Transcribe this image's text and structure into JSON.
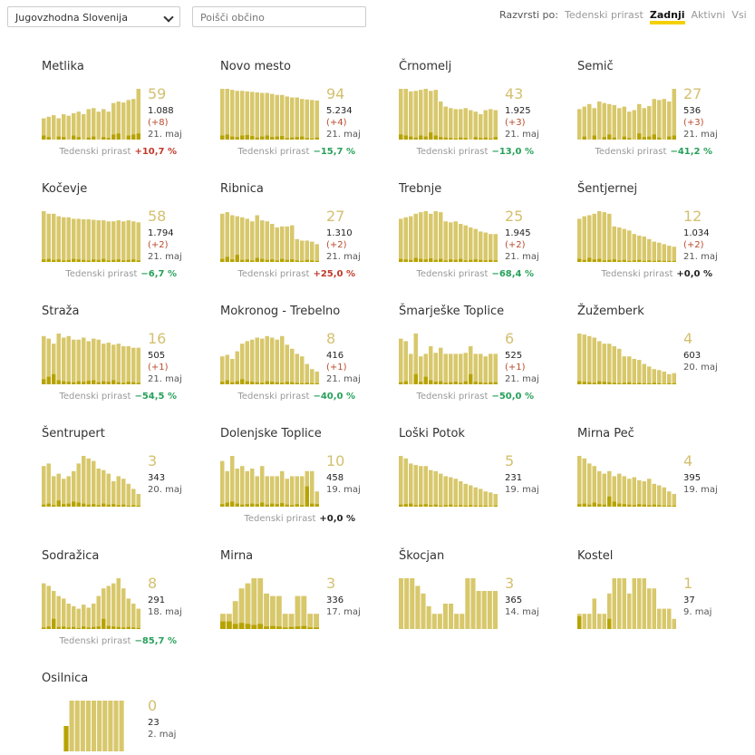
{
  "header": {
    "region": "Jugovzhodna Slovenija",
    "search_placeholder": "Poišči občino",
    "sort_label": "Razvrsti po:",
    "sort_options": [
      "Tedenski prirast",
      "Zadnji",
      "Aktivni",
      "Vsi"
    ],
    "active_sort": 1
  },
  "growth_label": "Tedenski prirast",
  "items": [
    {
      "name": "Metlika",
      "last": "59",
      "total": "1.088",
      "delta": "(+8)",
      "date": "21. maj",
      "growth": "+10,7 %",
      "bars": [
        42,
        45,
        48,
        42,
        50,
        47,
        52,
        55,
        50,
        60,
        62,
        55,
        60,
        55,
        72,
        75,
        73,
        78,
        80,
        100
      ],
      "new": [
        8,
        5,
        0,
        6,
        5,
        0,
        8,
        5,
        0,
        4,
        6,
        0,
        5,
        3,
        10,
        12,
        0,
        8,
        10,
        12
      ]
    },
    {
      "name": "Novo mesto",
      "last": "94",
      "total": "5.234",
      "delta": "(+4)",
      "date": "21. maj",
      "growth": "−15,7 %",
      "bars": [
        100,
        100,
        98,
        96,
        96,
        95,
        94,
        93,
        92,
        92,
        90,
        88,
        88,
        85,
        83,
        83,
        80,
        79,
        78,
        77
      ],
      "new": [
        8,
        10,
        6,
        5,
        8,
        9,
        7,
        4,
        6,
        8,
        5,
        6,
        7,
        3,
        4,
        5,
        6,
        3,
        2,
        4
      ]
    },
    {
      "name": "Črnomelj",
      "last": "43",
      "total": "1.925",
      "delta": "(+3)",
      "date": "21. maj",
      "growth": "−13,0 %",
      "bars": [
        100,
        100,
        95,
        96,
        98,
        100,
        96,
        98,
        75,
        65,
        62,
        60,
        60,
        62,
        58,
        55,
        50,
        58,
        60,
        58
      ],
      "new": [
        10,
        8,
        6,
        4,
        8,
        6,
        14,
        8,
        5,
        4,
        3,
        2,
        4,
        3,
        0,
        5,
        3,
        4,
        2,
        5
      ]
    },
    {
      "name": "Semič",
      "last": "27",
      "total": "536",
      "delta": "(+3)",
      "date": "21. maj",
      "growth": "−41,2 %",
      "bars": [
        60,
        65,
        70,
        62,
        75,
        72,
        70,
        68,
        62,
        65,
        55,
        58,
        70,
        62,
        66,
        80,
        78,
        80,
        75,
        100
      ],
      "new": [
        0,
        6,
        0,
        8,
        0,
        5,
        10,
        4,
        0,
        6,
        3,
        0,
        12,
        5,
        6,
        10,
        4,
        0,
        6,
        8
      ]
    },
    {
      "name": "Kočevje",
      "last": "58",
      "total": "1.794",
      "delta": "(+2)",
      "date": "21. maj",
      "growth": "−6,7 %",
      "bars": [
        100,
        95,
        95,
        90,
        88,
        88,
        85,
        85,
        84,
        84,
        83,
        82,
        82,
        80,
        80,
        82,
        80,
        82,
        80,
        78
      ],
      "new": [
        5,
        6,
        4,
        5,
        3,
        4,
        6,
        5,
        4,
        3,
        5,
        4,
        6,
        3,
        4,
        5,
        3,
        4,
        5,
        3
      ]
    },
    {
      "name": "Ribnica",
      "last": "27",
      "total": "1.310",
      "delta": "(+2)",
      "date": "21. maj",
      "growth": "+25,0 %",
      "bars": [
        95,
        98,
        92,
        90,
        88,
        85,
        80,
        92,
        82,
        80,
        75,
        68,
        70,
        70,
        72,
        45,
        42,
        42,
        40,
        35
      ],
      "new": [
        6,
        10,
        5,
        14,
        4,
        5,
        3,
        8,
        6,
        4,
        5,
        3,
        6,
        4,
        5,
        3,
        2,
        4,
        3,
        2
      ]
    },
    {
      "name": "Trebnje",
      "last": "25",
      "total": "1.945",
      "delta": "(+2)",
      "date": "21. maj",
      "growth": "−68,4 %",
      "bars": [
        85,
        88,
        90,
        95,
        98,
        100,
        95,
        100,
        98,
        80,
        78,
        80,
        75,
        72,
        68,
        65,
        60,
        58,
        55,
        55
      ],
      "new": [
        6,
        5,
        4,
        8,
        6,
        5,
        7,
        4,
        6,
        3,
        5,
        4,
        6,
        3,
        4,
        5,
        4,
        3,
        4,
        3
      ]
    },
    {
      "name": "Šentjernej",
      "last": "12",
      "total": "1.034",
      "delta": "(+2)",
      "date": "21. maj",
      "growth": "+0,0 %",
      "bars": [
        85,
        90,
        92,
        95,
        100,
        98,
        95,
        70,
        68,
        65,
        62,
        55,
        52,
        50,
        45,
        40,
        38,
        35,
        32,
        30
      ],
      "new": [
        6,
        4,
        8,
        5,
        6,
        3,
        4,
        5,
        3,
        4,
        2,
        3,
        4,
        2,
        3,
        2,
        3,
        2,
        2,
        2
      ]
    },
    {
      "name": "Straža",
      "last": "16",
      "total": "505",
      "delta": "(+1)",
      "date": "21. maj",
      "growth": "−54,5 %",
      "bars": [
        95,
        90,
        80,
        100,
        92,
        95,
        88,
        88,
        92,
        85,
        90,
        88,
        80,
        82,
        78,
        80,
        75,
        75,
        72,
        72
      ],
      "new": [
        10,
        15,
        20,
        8,
        6,
        5,
        4,
        6,
        5,
        7,
        8,
        4,
        6,
        5,
        8,
        4,
        3,
        5,
        4,
        3
      ]
    },
    {
      "name": "Mokronog - Trebelno",
      "last": "8",
      "total": "416",
      "delta": "(+1)",
      "date": "21. maj",
      "growth": "−40,0 %",
      "bars": [
        55,
        58,
        50,
        65,
        80,
        85,
        88,
        92,
        90,
        95,
        92,
        88,
        95,
        78,
        70,
        60,
        55,
        40,
        30,
        25
      ],
      "new": [
        5,
        8,
        4,
        6,
        10,
        6,
        5,
        4,
        3,
        6,
        5,
        4,
        3,
        5,
        4,
        3,
        2,
        3,
        2,
        2
      ]
    },
    {
      "name": "Šmarješke Toplice",
      "last": "6",
      "total": "525",
      "delta": "(+1)",
      "date": "21. maj",
      "growth": "−50,0 %",
      "bars": [
        90,
        85,
        60,
        100,
        55,
        60,
        75,
        62,
        72,
        60,
        60,
        60,
        60,
        62,
        75,
        60,
        60,
        55,
        60,
        60
      ],
      "new": [
        4,
        6,
        0,
        20,
        5,
        15,
        8,
        5,
        6,
        3,
        4,
        5,
        3,
        6,
        20,
        5,
        4,
        3,
        4,
        4
      ]
    },
    {
      "name": "Žužemberk",
      "last": "4",
      "total": "603",
      "date": "20. maj",
      "bars": [
        100,
        98,
        95,
        92,
        85,
        80,
        80,
        75,
        70,
        55,
        55,
        50,
        48,
        40,
        35,
        30,
        28,
        25,
        20,
        22
      ],
      "new": [
        6,
        5,
        4,
        3,
        6,
        5,
        4,
        3,
        2,
        3,
        4,
        2,
        3,
        2,
        2,
        3,
        2,
        1,
        2,
        2
      ]
    },
    {
      "name": "Šentrupert",
      "last": "3",
      "total": "343",
      "date": "20. maj",
      "bars": [
        80,
        85,
        60,
        65,
        55,
        60,
        70,
        85,
        100,
        95,
        90,
        75,
        72,
        65,
        50,
        60,
        55,
        45,
        35,
        25
      ],
      "new": [
        4,
        6,
        3,
        12,
        5,
        6,
        10,
        8,
        6,
        4,
        5,
        3,
        6,
        4,
        5,
        3,
        4,
        2,
        3,
        2
      ]
    },
    {
      "name": "Dolenjske Toplice",
      "last": "10",
      "total": "458",
      "date": "19. maj",
      "growth": "+0,0 %",
      "bars": [
        90,
        70,
        100,
        75,
        80,
        70,
        75,
        60,
        80,
        60,
        60,
        60,
        70,
        55,
        60,
        60,
        60,
        70,
        70,
        30
      ],
      "new": [
        5,
        8,
        10,
        6,
        4,
        5,
        6,
        5,
        8,
        4,
        6,
        5,
        7,
        4,
        3,
        5,
        3,
        40,
        6,
        5
      ]
    },
    {
      "name": "Loški Potok",
      "last": "5",
      "total": "231",
      "date": "19. maj",
      "bars": [
        100,
        95,
        85,
        82,
        80,
        80,
        72,
        70,
        65,
        60,
        58,
        55,
        50,
        45,
        42,
        38,
        35,
        30,
        28,
        25
      ],
      "new": [
        4,
        5,
        6,
        3,
        4,
        5,
        3,
        4,
        2,
        3,
        4,
        2,
        3,
        2,
        3,
        2,
        2,
        2,
        1,
        2
      ]
    },
    {
      "name": "Mirna Peč",
      "last": "4",
      "total": "395",
      "date": "19. maj",
      "bars": [
        100,
        95,
        85,
        80,
        70,
        65,
        70,
        60,
        65,
        60,
        55,
        58,
        52,
        50,
        55,
        45,
        42,
        38,
        30,
        25
      ],
      "new": [
        5,
        6,
        4,
        8,
        5,
        4,
        20,
        10,
        6,
        5,
        4,
        3,
        5,
        4,
        3,
        4,
        3,
        2,
        2,
        2
      ]
    },
    {
      "name": "Sodražica",
      "last": "8",
      "total": "291",
      "date": "18. maj",
      "growth": "−85,7 %",
      "bars": [
        90,
        85,
        75,
        65,
        60,
        50,
        45,
        40,
        48,
        42,
        50,
        65,
        80,
        85,
        90,
        100,
        80,
        60,
        50,
        40
      ],
      "new": [
        3,
        5,
        20,
        4,
        5,
        3,
        4,
        2,
        5,
        3,
        4,
        5,
        20,
        6,
        5,
        4,
        3,
        4,
        3,
        2
      ]
    },
    {
      "name": "Mirna",
      "last": "3",
      "total": "336",
      "date": "17. maj",
      "bars": [
        30,
        30,
        55,
        80,
        90,
        100,
        100,
        70,
        65,
        65,
        30,
        30,
        65,
        65,
        30,
        30
      ],
      "new": [
        15,
        15,
        10,
        12,
        10,
        8,
        10,
        5,
        6,
        5,
        3,
        4,
        5,
        6,
        3,
        3
      ]
    },
    {
      "name": "Škocjan",
      "last": "3",
      "total": "365",
      "date": "14. maj",
      "bars": [
        100,
        100,
        100,
        85,
        70,
        45,
        30,
        30,
        50,
        50,
        30,
        30,
        100,
        100,
        75,
        75,
        75,
        75
      ],
      "new": [
        0,
        0,
        0,
        0,
        0,
        0,
        0,
        0,
        0,
        0,
        0,
        0,
        0,
        0,
        0,
        0,
        0,
        0
      ]
    },
    {
      "name": "Kostel",
      "last": "1",
      "total": "37",
      "date": "9. maj",
      "bars": [
        30,
        30,
        30,
        60,
        30,
        30,
        70,
        100,
        100,
        100,
        70,
        100,
        100,
        100,
        80,
        80,
        40,
        40,
        40,
        20
      ],
      "new": [
        25,
        0,
        0,
        0,
        0,
        0,
        20,
        0,
        0,
        0,
        0,
        0,
        0,
        0,
        0,
        0,
        0,
        0,
        0,
        0
      ]
    },
    {
      "name": "Osilnica",
      "last": "0",
      "total": "23",
      "date": "2. maj",
      "bars": [
        0,
        0,
        0,
        0,
        50,
        100,
        100,
        100,
        100,
        100,
        100,
        100,
        100,
        100,
        100,
        0,
        0,
        0
      ],
      "new": [
        0,
        0,
        0,
        0,
        50,
        0,
        0,
        0,
        0,
        0,
        0,
        0,
        0,
        0,
        0,
        0,
        0,
        0
      ]
    }
  ]
}
